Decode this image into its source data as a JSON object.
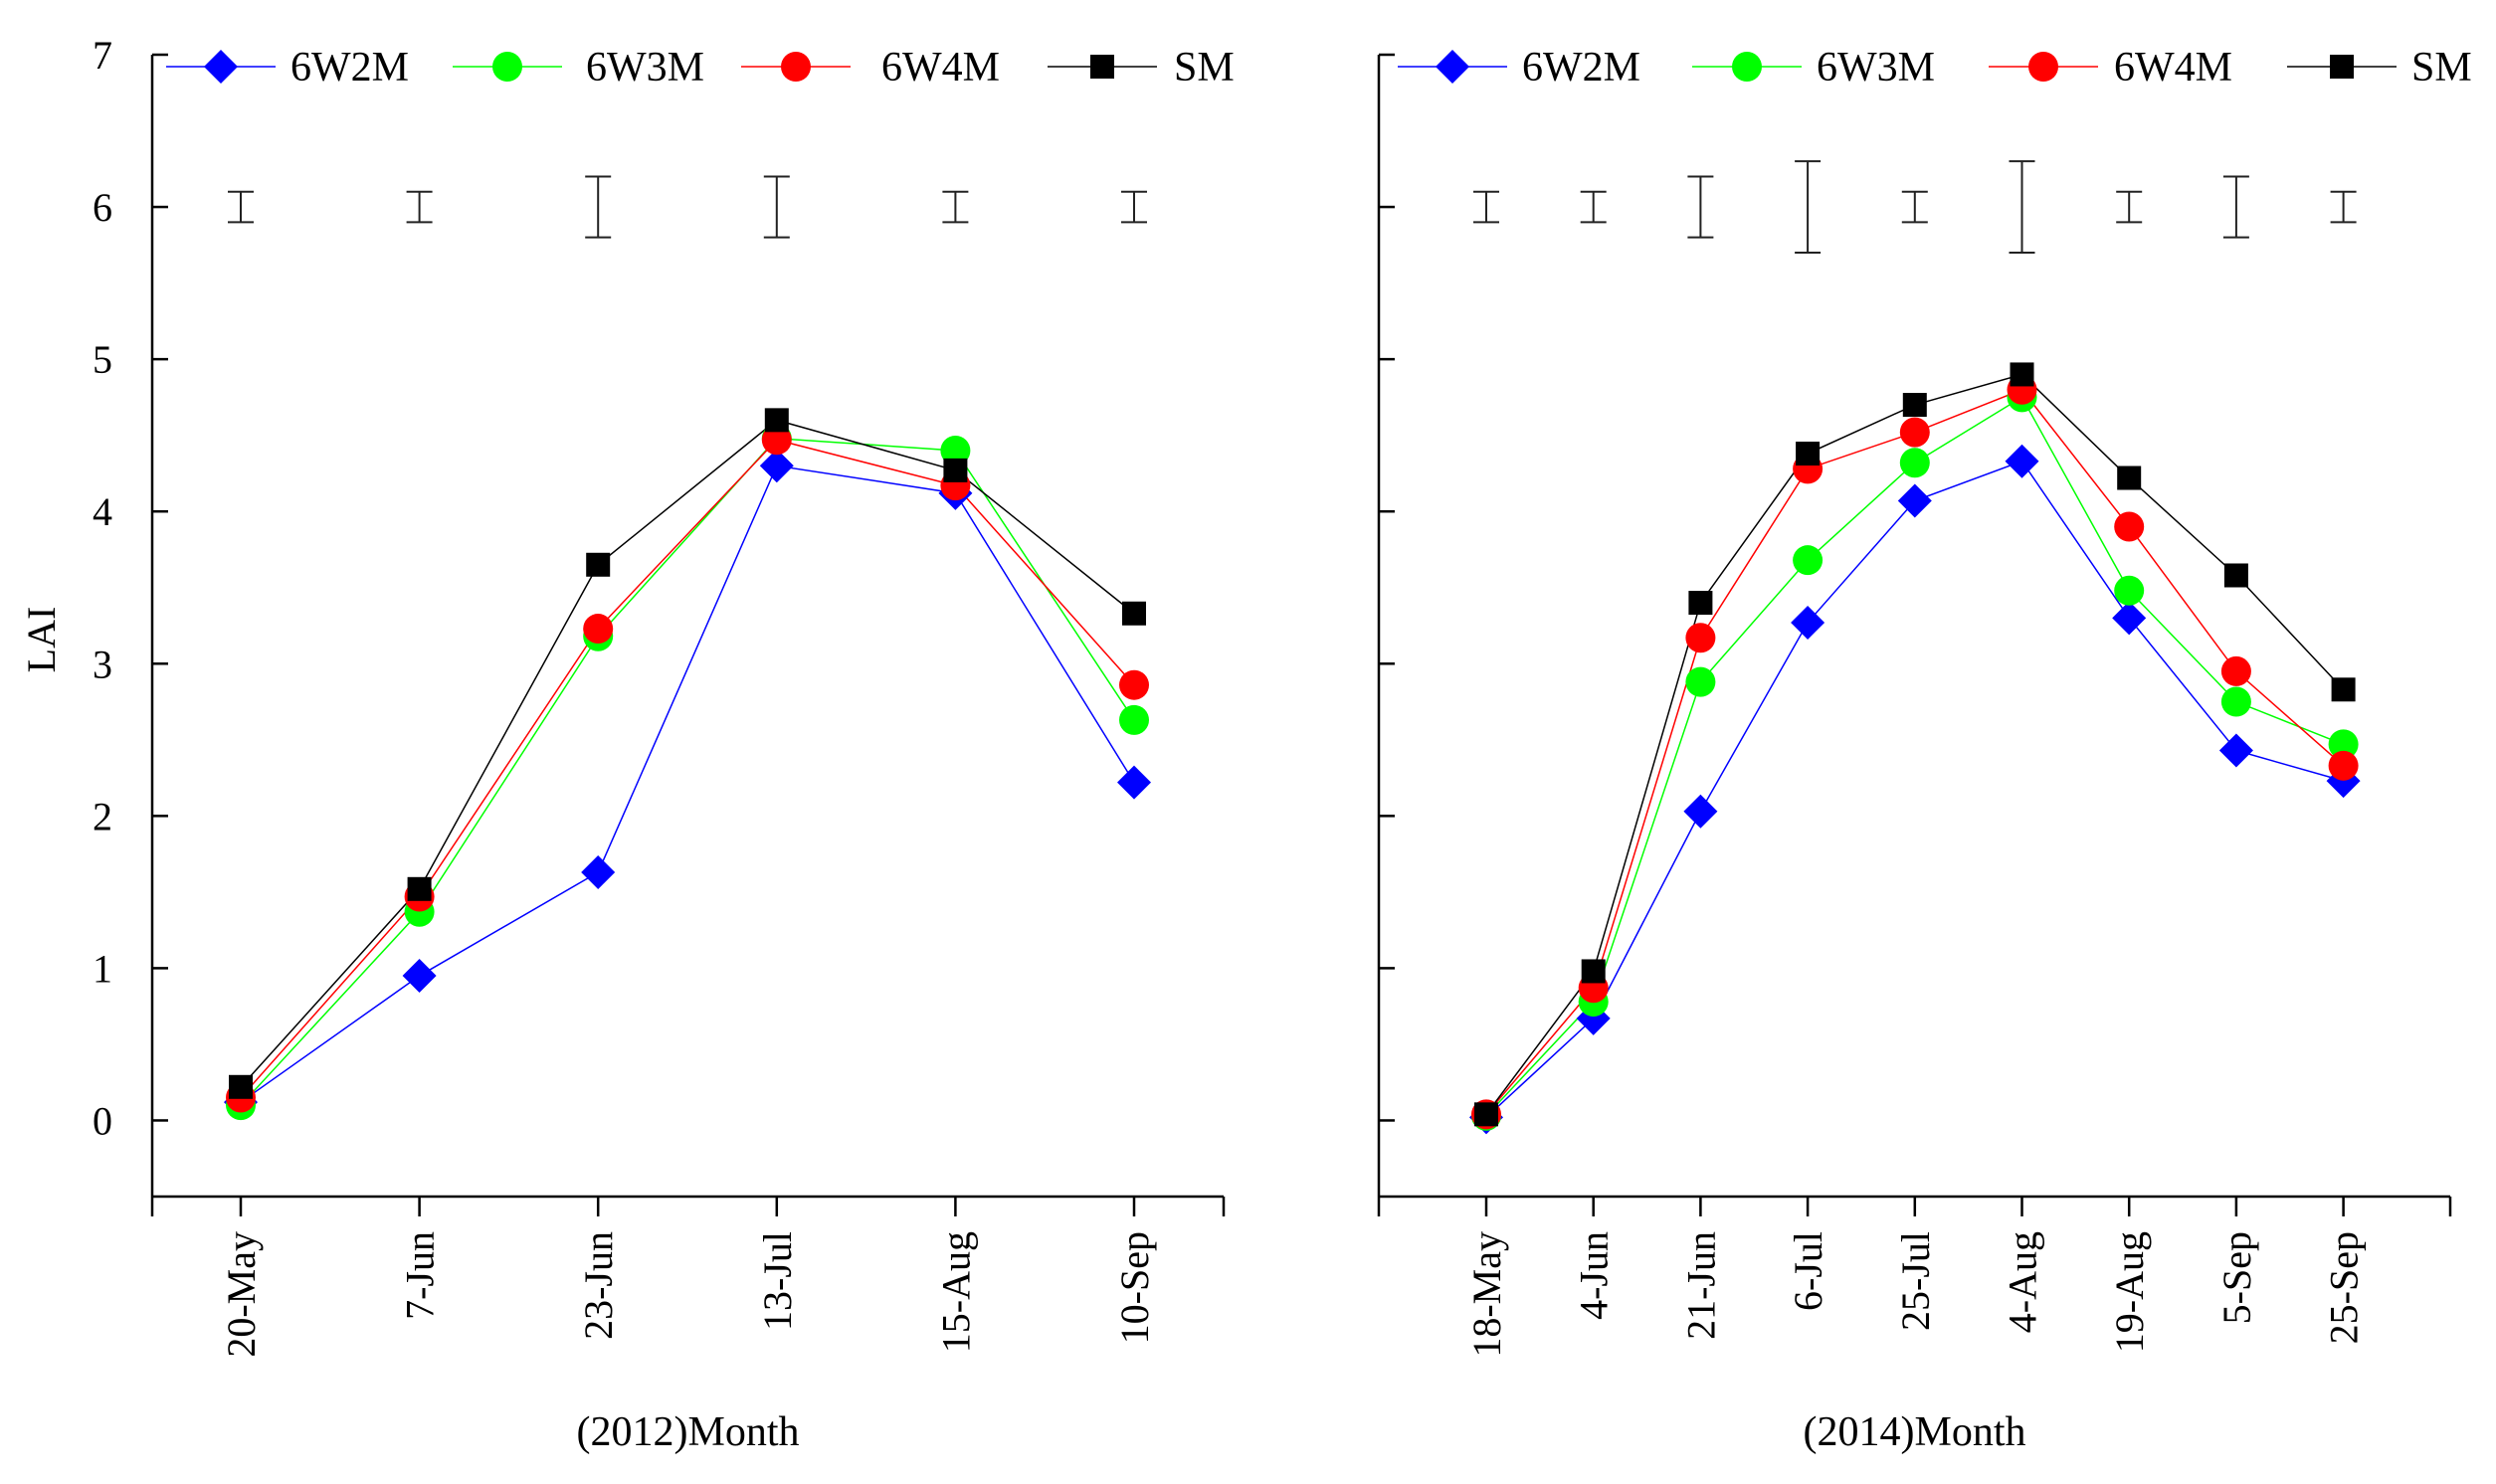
{
  "y_axis_label": "LAI",
  "chart_data": [
    {
      "type": "line",
      "xlabel": "(2012)Month",
      "ylabel": "LAI",
      "ylim": [
        -0.5,
        7
      ],
      "yticks": [
        0,
        1,
        2,
        3,
        4,
        5,
        6,
        7
      ],
      "categories": [
        "20-May",
        "7-Jun",
        "23-Jun",
        "13-Jul",
        "15-Aug",
        "10-Sep"
      ],
      "legend_position": "top",
      "series": [
        {
          "name": "6W2M",
          "color": "#0000ff",
          "marker": "diamond",
          "values": [
            0.12,
            0.95,
            1.63,
            4.3,
            4.12,
            2.22
          ]
        },
        {
          "name": "6W3M",
          "color": "#00ff00",
          "marker": "circle",
          "values": [
            0.1,
            1.37,
            3.18,
            4.48,
            4.4,
            2.63
          ]
        },
        {
          "name": "6W4M",
          "color": "#ff0000",
          "marker": "circle",
          "values": [
            0.15,
            1.47,
            3.23,
            4.47,
            4.17,
            2.86
          ]
        },
        {
          "name": "SM",
          "color": "#000000",
          "marker": "square",
          "values": [
            0.22,
            1.52,
            3.65,
            4.6,
            4.27,
            3.33
          ]
        }
      ],
      "error_bars": {
        "center": 6.0,
        "half_widths": [
          0.1,
          0.1,
          0.2,
          0.2,
          0.1,
          0.1
        ]
      }
    },
    {
      "type": "line",
      "xlabel": "(2014)Month",
      "ylabel": "",
      "ylim": [
        -0.5,
        7
      ],
      "yticks": [
        0,
        1,
        2,
        3,
        4,
        5,
        6,
        7
      ],
      "categories": [
        "18-May",
        "4-Jun",
        "21-Jun",
        "6-Jul",
        "25-Jul",
        "4-Aug",
        "19-Aug",
        "5-Sep",
        "25-Sep"
      ],
      "legend_position": "top",
      "series": [
        {
          "name": "6W2M",
          "color": "#0000ff",
          "marker": "diamond",
          "values": [
            0.02,
            0.67,
            2.03,
            3.27,
            4.07,
            4.33,
            3.3,
            2.43,
            2.23
          ]
        },
        {
          "name": "6W3M",
          "color": "#00ff00",
          "marker": "circle",
          "values": [
            0.03,
            0.78,
            2.88,
            3.68,
            4.32,
            4.75,
            3.48,
            2.75,
            2.47
          ]
        },
        {
          "name": "6W4M",
          "color": "#ff0000",
          "marker": "circle",
          "values": [
            0.04,
            0.87,
            3.17,
            4.28,
            4.52,
            4.8,
            3.9,
            2.95,
            2.33
          ]
        },
        {
          "name": "SM",
          "color": "#000000",
          "marker": "square",
          "values": [
            0.04,
            0.98,
            3.4,
            4.38,
            4.7,
            4.9,
            4.22,
            3.58,
            2.83
          ]
        }
      ],
      "error_bars": {
        "center": 6.0,
        "half_widths": [
          0.1,
          0.1,
          0.2,
          0.3,
          0.1,
          0.3,
          0.1,
          0.2,
          0.1
        ]
      }
    }
  ]
}
